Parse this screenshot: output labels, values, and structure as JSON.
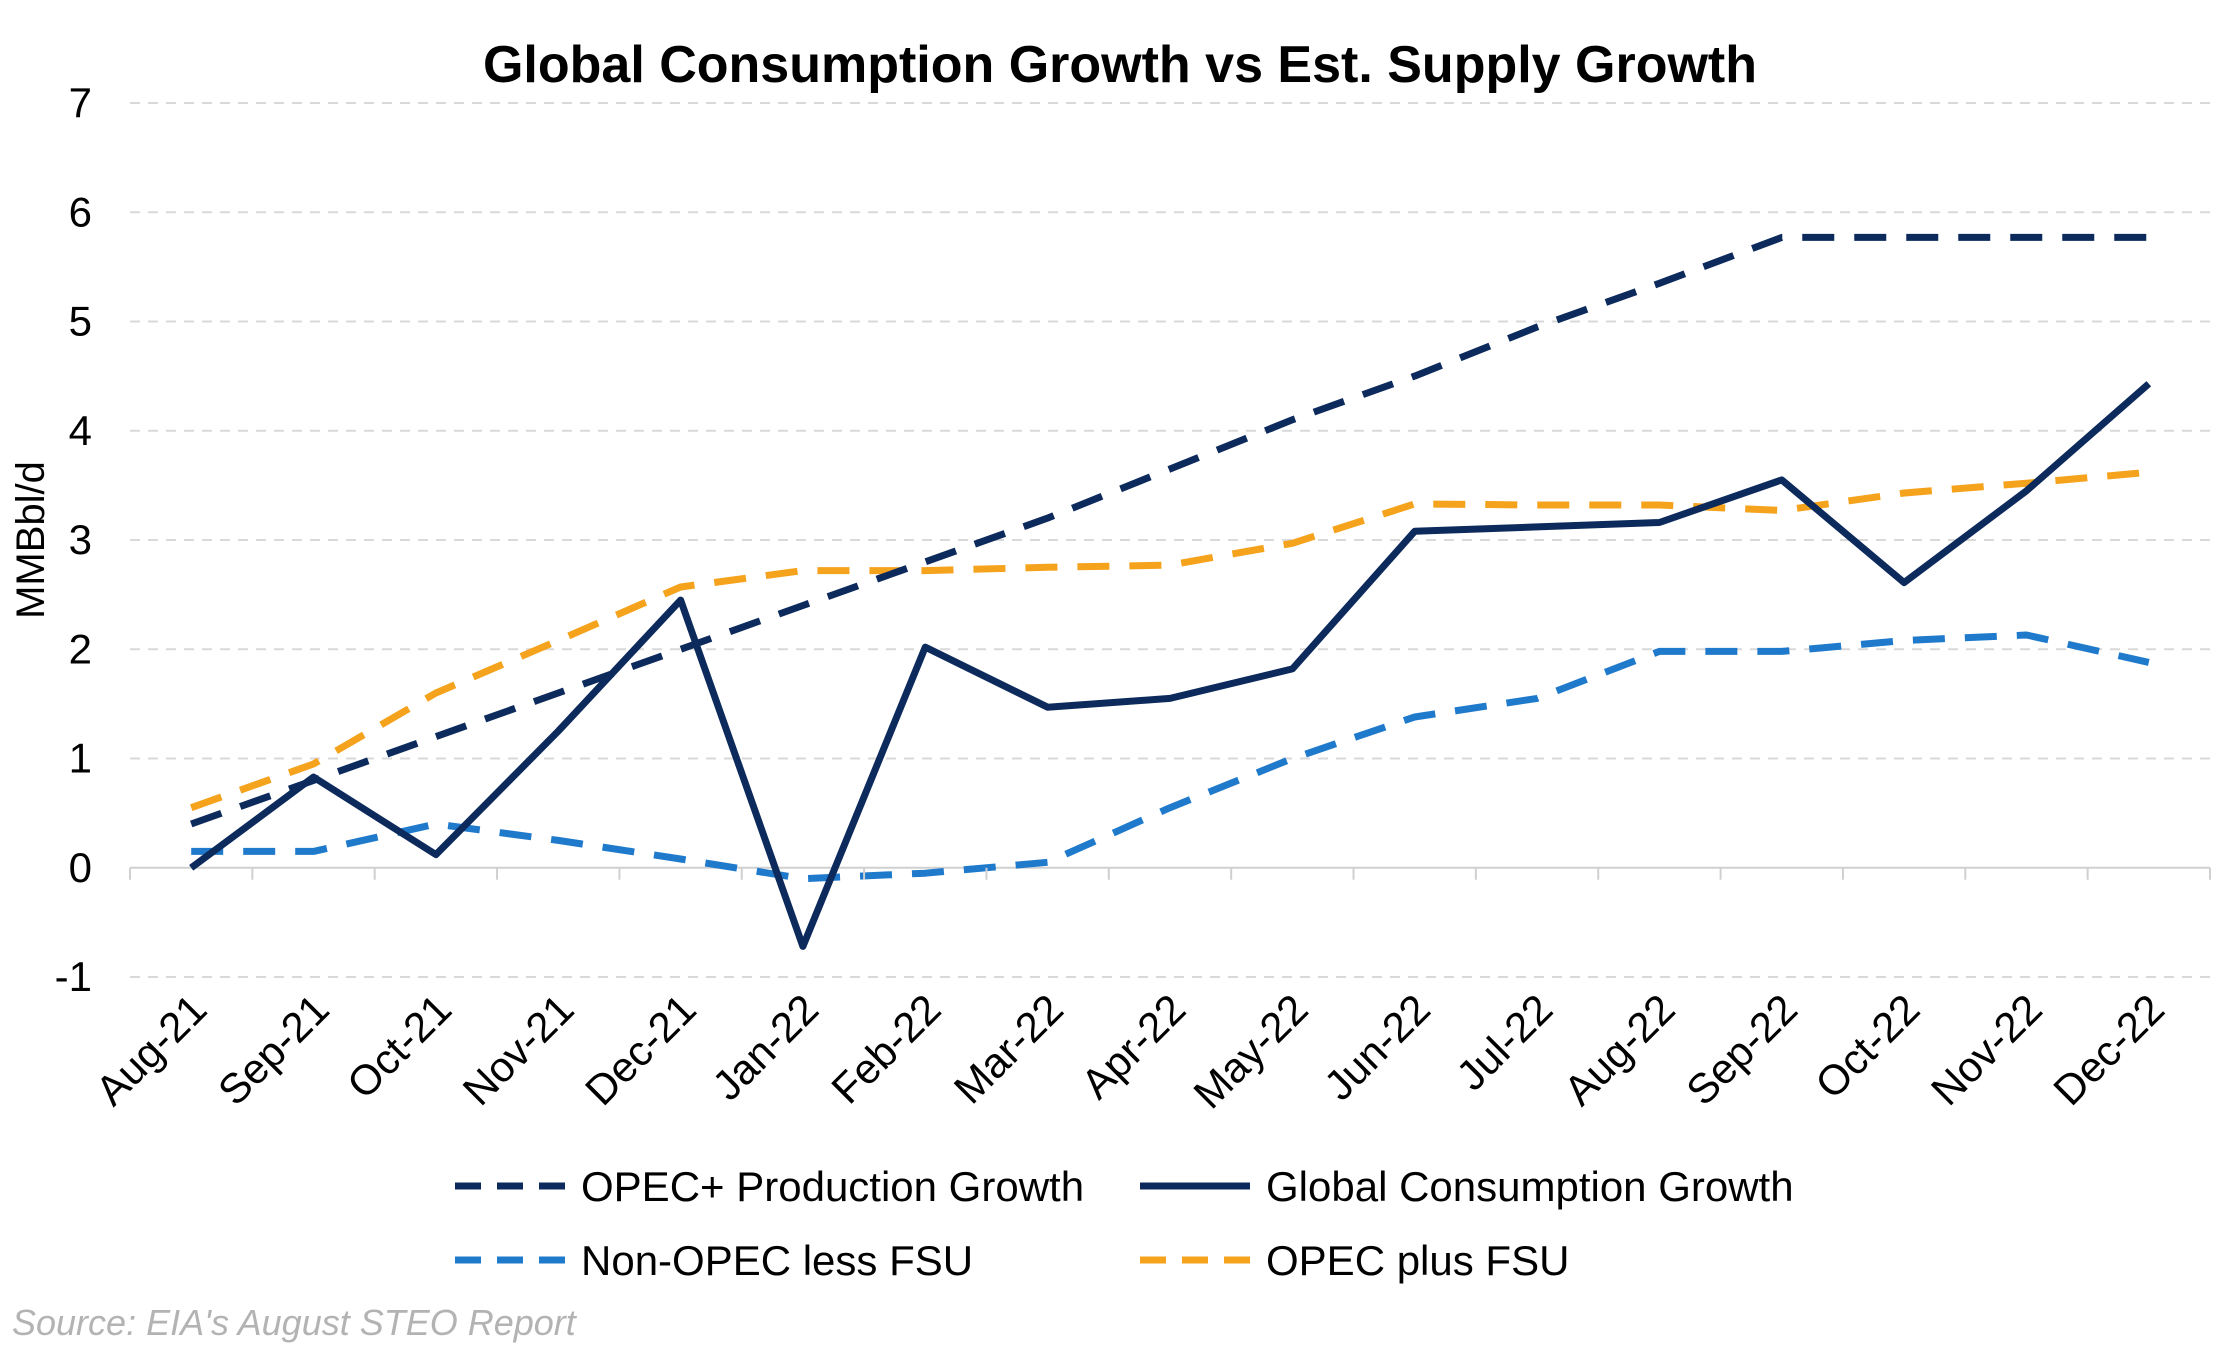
{
  "chart_data": {
    "type": "line",
    "title": "Global Consumption Growth vs Est. Supply Growth",
    "ylabel": "MMBbl/d",
    "xlabel": "",
    "ylim": [
      -1,
      7
    ],
    "yticks": [
      -1,
      0,
      1,
      2,
      3,
      4,
      5,
      6,
      7
    ],
    "grid": true,
    "legend_position": "bottom",
    "categories": [
      "Aug-21",
      "Sep-21",
      "Oct-21",
      "Nov-21",
      "Dec-21",
      "Jan-22",
      "Feb-22",
      "Mar-22",
      "Apr-22",
      "May-22",
      "Jun-22",
      "Jul-22",
      "Aug-22",
      "Sep-22",
      "Oct-22",
      "Nov-22",
      "Dec-22"
    ],
    "series": [
      {
        "name": "OPEC+ Production Growth",
        "color": "#0d2a5c",
        "style": "dashed",
        "values": [
          0.4,
          0.8,
          1.2,
          1.6,
          2.0,
          2.4,
          2.8,
          3.2,
          3.65,
          4.1,
          4.5,
          4.95,
          5.35,
          5.77,
          5.77,
          5.77,
          5.77
        ]
      },
      {
        "name": "Global Consumption Growth",
        "color": "#0d2a5c",
        "style": "solid",
        "values": [
          0.0,
          0.83,
          0.12,
          1.25,
          2.45,
          -0.72,
          2.02,
          1.47,
          1.55,
          1.82,
          3.08,
          3.12,
          3.16,
          3.55,
          2.61,
          3.45,
          4.43
        ]
      },
      {
        "name": "Non-OPEC less FSU",
        "color": "#1f7acc",
        "style": "dashed",
        "values": [
          0.15,
          0.15,
          0.4,
          0.25,
          0.08,
          -0.1,
          -0.05,
          0.05,
          0.55,
          1.0,
          1.38,
          1.55,
          1.98,
          1.98,
          2.08,
          2.13,
          1.88
        ]
      },
      {
        "name": "OPEC plus FSU",
        "color": "#f5a21c",
        "style": "dashed",
        "values": [
          0.55,
          0.95,
          1.6,
          2.08,
          2.57,
          2.72,
          2.72,
          2.75,
          2.77,
          2.97,
          3.33,
          3.32,
          3.32,
          3.27,
          3.43,
          3.52,
          3.62
        ]
      }
    ],
    "source": "Source: EIA's August STEO Report"
  }
}
